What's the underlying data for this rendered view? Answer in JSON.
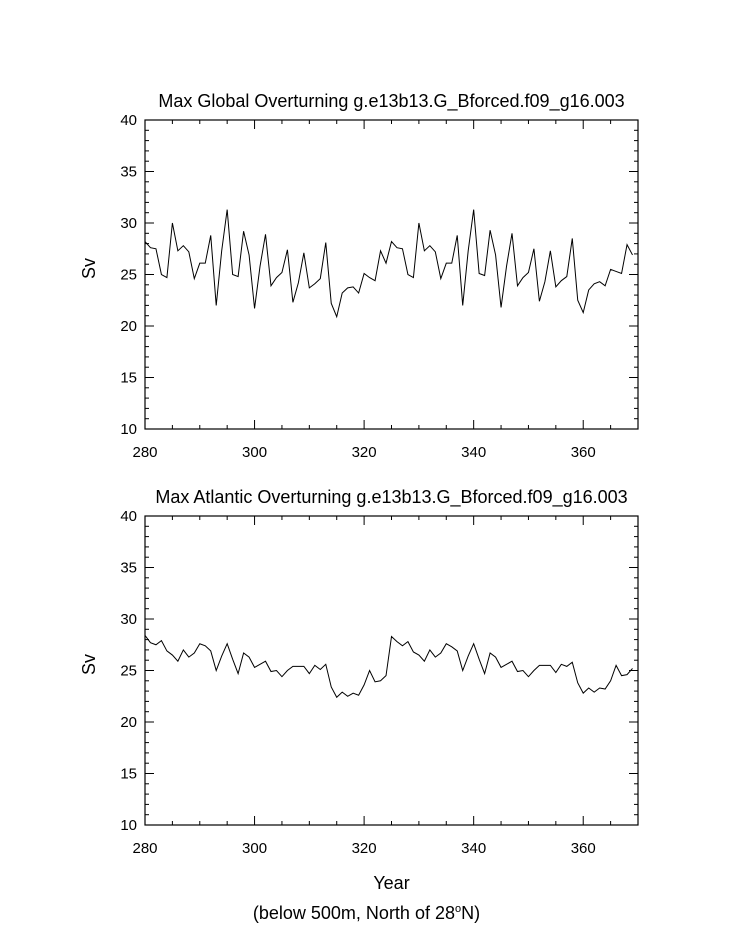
{
  "chart_data": [
    {
      "type": "line",
      "title": "Max Global Overturning g.e13b13.G_Bforced.f09_g16.003",
      "xlabel": "",
      "ylabel": "Sv",
      "xlim": [
        280,
        370
      ],
      "ylim": [
        10,
        40
      ],
      "x_ticks": [
        280,
        300,
        320,
        340,
        360
      ],
      "y_ticks": [
        10,
        15,
        20,
        25,
        30,
        35,
        40
      ],
      "x": [
        280,
        281,
        282,
        283,
        284,
        285,
        286,
        287,
        288,
        289,
        290,
        291,
        292,
        293,
        294,
        295,
        296,
        297,
        298,
        299,
        300,
        301,
        302,
        303,
        304,
        305,
        306,
        307,
        308,
        309,
        310,
        311,
        312,
        313,
        314,
        315,
        316,
        317,
        318,
        319,
        320,
        321,
        322,
        323,
        324,
        325,
        326,
        327,
        328,
        329,
        330,
        331,
        332,
        333,
        334,
        335,
        336,
        337,
        338,
        339,
        340,
        341,
        342,
        343,
        344,
        345,
        346,
        347,
        348,
        349,
        350,
        351,
        352,
        353,
        354,
        355,
        356,
        357,
        358,
        359,
        360,
        361,
        362,
        363,
        364,
        365,
        366,
        367,
        368,
        369
      ],
      "series": [
        {
          "values": [
            28.2,
            27.6,
            27.5,
            25.0,
            24.7,
            30.0,
            27.3,
            27.8,
            27.2,
            24.6,
            26.1,
            26.1,
            28.8,
            22.0,
            27.3,
            31.3,
            25.0,
            24.8,
            29.2,
            26.9,
            21.7,
            25.8,
            28.9,
            23.9,
            24.7,
            25.2,
            27.4,
            22.3,
            24.2,
            27.1,
            23.7,
            24.1,
            24.6,
            28.1,
            22.2,
            20.9,
            23.2,
            23.7,
            23.8,
            23.2,
            25.1,
            24.7,
            24.4,
            27.3,
            26.1,
            28.2,
            27.6,
            27.5,
            25.0,
            24.7,
            30.0,
            27.3,
            27.8,
            27.2,
            24.6,
            26.1,
            26.1,
            28.8,
            22.0,
            27.3,
            31.3,
            25.1,
            24.9,
            29.3,
            26.9,
            21.8,
            25.8,
            29.0,
            23.9,
            24.7,
            25.2,
            27.5,
            22.4,
            24.3,
            27.3,
            23.8,
            24.4,
            24.8,
            28.5,
            22.5,
            21.3,
            23.5,
            24.1,
            24.3,
            23.9,
            25.5,
            25.3,
            25.1,
            27.9,
            26.9
          ]
        }
      ]
    },
    {
      "type": "line",
      "title": "Max Atlantic Overturning g.e13b13.G_Bforced.f09_g16.003",
      "xlabel": "Year",
      "ylabel": "Sv",
      "xlim": [
        280,
        370
      ],
      "ylim": [
        10,
        40
      ],
      "x_ticks": [
        280,
        300,
        320,
        340,
        360
      ],
      "y_ticks": [
        10,
        15,
        20,
        25,
        30,
        35,
        40
      ],
      "x": [
        280,
        281,
        282,
        283,
        284,
        285,
        286,
        287,
        288,
        289,
        290,
        291,
        292,
        293,
        294,
        295,
        296,
        297,
        298,
        299,
        300,
        301,
        302,
        303,
        304,
        305,
        306,
        307,
        308,
        309,
        310,
        311,
        312,
        313,
        314,
        315,
        316,
        317,
        318,
        319,
        320,
        321,
        322,
        323,
        324,
        325,
        326,
        327,
        328,
        329,
        330,
        331,
        332,
        333,
        334,
        335,
        336,
        337,
        338,
        339,
        340,
        341,
        342,
        343,
        344,
        345,
        346,
        347,
        348,
        349,
        350,
        351,
        352,
        353,
        354,
        355,
        356,
        357,
        358,
        359,
        360,
        361,
        362,
        363,
        364,
        365,
        366,
        367,
        368,
        369
      ],
      "series": [
        {
          "values": [
            28.4,
            27.7,
            27.5,
            27.9,
            26.9,
            26.5,
            25.9,
            27.0,
            26.3,
            26.7,
            27.6,
            27.4,
            26.9,
            25.0,
            26.4,
            27.6,
            26.1,
            24.7,
            26.7,
            26.3,
            25.3,
            25.6,
            25.9,
            24.9,
            25.0,
            24.4,
            25.0,
            25.4,
            25.4,
            25.4,
            24.7,
            25.5,
            25.1,
            25.6,
            23.4,
            22.4,
            22.9,
            22.5,
            22.8,
            22.6,
            23.6,
            25.0,
            23.9,
            24.0,
            24.5,
            28.3,
            27.8,
            27.4,
            27.8,
            26.8,
            26.5,
            25.9,
            27.0,
            26.3,
            26.7,
            27.6,
            27.3,
            26.9,
            25.0,
            26.4,
            27.6,
            26.1,
            24.7,
            26.7,
            26.3,
            25.3,
            25.6,
            25.9,
            24.9,
            25.0,
            24.4,
            25.0,
            25.5,
            25.5,
            25.5,
            24.8,
            25.6,
            25.4,
            25.8,
            23.8,
            22.8,
            23.3,
            22.9,
            23.3,
            23.2,
            24.0,
            25.5,
            24.5,
            24.6,
            25.2
          ]
        }
      ]
    }
  ],
  "footer": {
    "prefix": "(below 500m, North of 28",
    "degree": "o",
    "suffix": "N)"
  }
}
